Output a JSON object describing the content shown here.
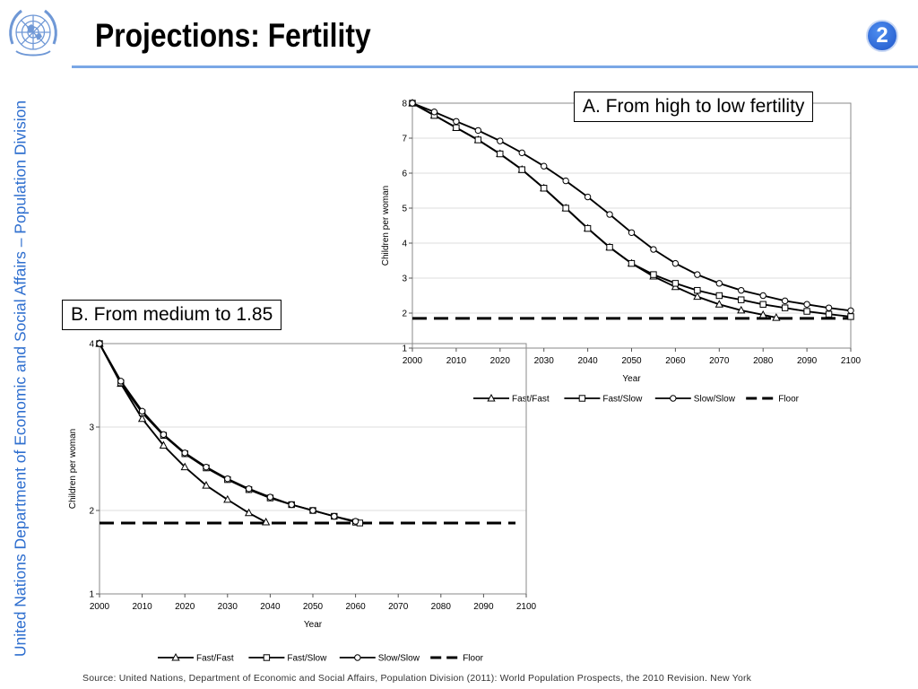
{
  "header": {
    "title": "Projections: Fertility",
    "page_number": "2",
    "logo_icon": "un-emblem-icon",
    "accent_color": "#2f6fcf",
    "rule_color": "#7aa7e6"
  },
  "sidebar": {
    "text": "United Nations Department of Economic and Social Affairs – Population Division"
  },
  "footer": {
    "source": "Source: United Nations, Department of Economic and Social Affairs, Population Division (2011): World Population Prospects, the 2010 Revision. New York"
  },
  "chart_data": [
    {
      "id": "A",
      "type": "line",
      "title": "A. From high to low fertility",
      "xlabel": "Year",
      "ylabel": "Children per woman",
      "xlim": [
        2000,
        2100
      ],
      "ylim": [
        1,
        8
      ],
      "xticks": [
        2000,
        2010,
        2020,
        2030,
        2040,
        2050,
        2060,
        2070,
        2080,
        2090,
        2100
      ],
      "yticks": [
        1,
        2,
        3,
        4,
        5,
        6,
        7,
        8
      ],
      "grid": "horizontal",
      "legend_position": "bottom",
      "floor": 1.85,
      "series": [
        {
          "name": "Fast/Fast",
          "marker": "triangle",
          "x": [
            2000,
            2005,
            2010,
            2015,
            2020,
            2025,
            2030,
            2035,
            2040,
            2045,
            2050,
            2055,
            2060,
            2065,
            2070,
            2075,
            2080,
            2083
          ],
          "y": [
            8.0,
            7.65,
            7.3,
            6.95,
            6.55,
            6.1,
            5.57,
            5.0,
            4.42,
            3.88,
            3.42,
            3.05,
            2.75,
            2.47,
            2.25,
            2.08,
            1.95,
            1.87
          ]
        },
        {
          "name": "Fast/Slow",
          "marker": "square",
          "x": [
            2000,
            2005,
            2010,
            2015,
            2020,
            2025,
            2030,
            2035,
            2040,
            2045,
            2050,
            2055,
            2060,
            2065,
            2070,
            2075,
            2080,
            2085,
            2090,
            2095,
            2100
          ],
          "y": [
            8.0,
            7.65,
            7.3,
            6.95,
            6.55,
            6.1,
            5.57,
            5.0,
            4.42,
            3.88,
            3.42,
            3.1,
            2.85,
            2.65,
            2.5,
            2.38,
            2.25,
            2.15,
            2.05,
            1.97,
            1.9
          ]
        },
        {
          "name": "Slow/Slow",
          "marker": "circle",
          "x": [
            2000,
            2005,
            2010,
            2015,
            2020,
            2025,
            2030,
            2035,
            2040,
            2045,
            2050,
            2055,
            2060,
            2065,
            2070,
            2075,
            2080,
            2085,
            2090,
            2095,
            2100
          ],
          "y": [
            8.0,
            7.75,
            7.48,
            7.22,
            6.92,
            6.58,
            6.2,
            5.78,
            5.32,
            4.82,
            4.3,
            3.82,
            3.42,
            3.1,
            2.85,
            2.65,
            2.5,
            2.35,
            2.25,
            2.15,
            2.07
          ]
        }
      ]
    },
    {
      "id": "B",
      "type": "line",
      "title": "B. From medium to 1.85",
      "xlabel": "Year",
      "ylabel": "Children per woman",
      "xlim": [
        2000,
        2100
      ],
      "ylim": [
        1,
        4
      ],
      "xticks": [
        2000,
        2010,
        2020,
        2030,
        2040,
        2050,
        2060,
        2070,
        2080,
        2090,
        2100
      ],
      "yticks": [
        1,
        2,
        3,
        4
      ],
      "grid": "horizontal",
      "legend_position": "bottom",
      "floor": 1.85,
      "series": [
        {
          "name": "Fast/Fast",
          "marker": "triangle",
          "x": [
            2000,
            2005,
            2010,
            2015,
            2020,
            2025,
            2030,
            2035,
            2039
          ],
          "y": [
            4.0,
            3.52,
            3.1,
            2.78,
            2.52,
            2.3,
            2.13,
            1.97,
            1.86
          ]
        },
        {
          "name": "Fast/Slow",
          "marker": "square",
          "x": [
            2000,
            2005,
            2010,
            2015,
            2020,
            2025,
            2030,
            2035,
            2040,
            2045,
            2050,
            2055,
            2060,
            2061
          ],
          "y": [
            4.0,
            3.53,
            3.17,
            2.9,
            2.68,
            2.51,
            2.37,
            2.25,
            2.15,
            2.07,
            2.0,
            1.93,
            1.86,
            1.85
          ]
        },
        {
          "name": "Slow/Slow",
          "marker": "circle",
          "x": [
            2000,
            2005,
            2010,
            2015,
            2020,
            2025,
            2030,
            2035,
            2040,
            2045,
            2050,
            2055,
            2060
          ],
          "y": [
            4.0,
            3.55,
            3.19,
            2.91,
            2.69,
            2.52,
            2.38,
            2.26,
            2.16,
            2.07,
            2.0,
            1.93,
            1.87
          ]
        }
      ]
    }
  ]
}
